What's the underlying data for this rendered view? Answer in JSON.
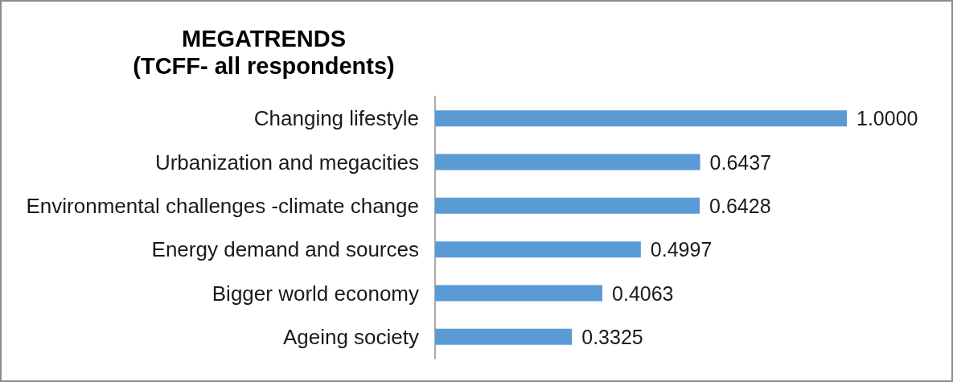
{
  "chart_data": {
    "type": "bar",
    "orientation": "horizontal",
    "title": "MEGATRENDS",
    "subtitle": "(TCFF- all respondents)",
    "categories": [
      "Changing lifestyle",
      "Urbanization and megacities",
      "Environmental challenges -climate change",
      "Energy demand and sources",
      "Bigger world economy",
      "Ageing society"
    ],
    "values": [
      1.0,
      0.6437,
      0.6428,
      0.4997,
      0.4063,
      0.3325
    ],
    "value_labels": [
      "1.0000",
      "0.6437",
      "0.6428",
      "0.4997",
      "0.4063",
      "0.3325"
    ],
    "color": "#5b9bd5",
    "tick_labels": "y"
  }
}
